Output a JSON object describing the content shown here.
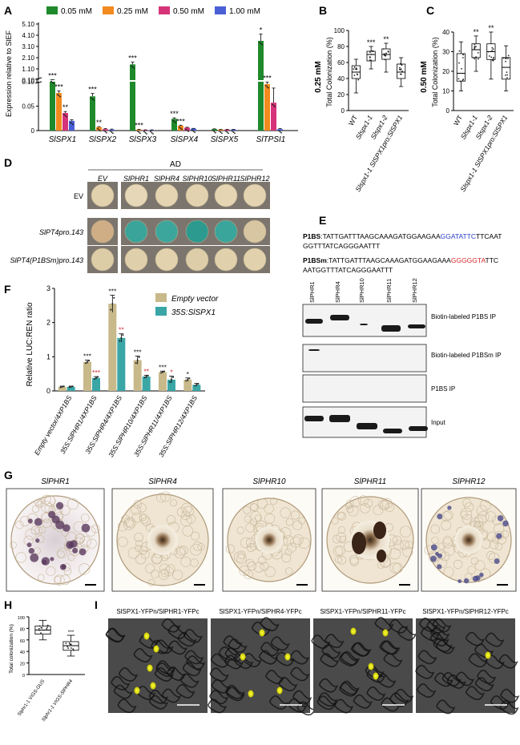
{
  "panels": {
    "A": {
      "letter": "A",
      "ylabel": "Expression relative to SlEF",
      "legend": [
        "0.05 mM",
        "0.25 mM",
        "0.50 mM",
        "1.00 mM"
      ],
      "series_colors": [
        "#1f8a2c",
        "#f28a1e",
        "#d6337a",
        "#4a5fd6"
      ],
      "upper_ticks": [
        "0.10",
        "1.10",
        "2.10",
        "3.10",
        "4.10",
        "5.10"
      ],
      "lower_ticks": [
        "0",
        "0.05",
        "0.10"
      ],
      "genes": [
        "SlSPX1",
        "SlSPX2",
        "SlSPX3",
        "SlSPX4",
        "SlSPX5",
        "SlTPSI1"
      ],
      "sig": [
        [
          "***",
          "***",
          "**",
          ""
        ],
        [
          "***",
          "**",
          "",
          ""
        ],
        [
          "***",
          "***",
          "",
          ""
        ],
        [
          "***",
          "***",
          "",
          ""
        ],
        [
          "",
          "",
          "",
          ""
        ],
        [
          "*",
          "***",
          "",
          ""
        ]
      ]
    },
    "B": {
      "letter": "B",
      "side_label": "0.25 mM",
      "ylabel": "Total Colonization (%)",
      "yticks": [
        "0",
        "20",
        "40",
        "60",
        "80",
        "100"
      ],
      "groups": [
        "WT",
        "Slspx1-1",
        "Slspx1-2",
        "Slspx1-1 SlSPX1pro:SlSPX1"
      ],
      "sig": [
        "",
        "***",
        "**",
        ""
      ]
    },
    "C": {
      "letter": "C",
      "side_label": "0.50 mM",
      "ylabel": "Total Colonization (%)",
      "yticks": [
        "0",
        "10",
        "20",
        "30",
        "40"
      ],
      "groups": [
        "WT",
        "Slspx1-1",
        "Slspx1-2",
        "Slspx1-1 SlSPX1pro:SlSPX1"
      ],
      "sig": [
        "",
        "**",
        "**",
        ""
      ]
    },
    "D": {
      "letter": "D",
      "top_label": "AD",
      "cols": [
        "EV",
        "SlPHR1",
        "SlPHR4",
        "SlPHR10",
        "SlPHR11",
        "SlPHR12"
      ],
      "rows": [
        "EV",
        "SlPT4pro.143",
        "SlPT4(P1BSm)pro.143"
      ],
      "colony_colors": [
        [
          "#e1d1ad",
          "#e6d7b8",
          "#e4d4b2",
          "#e2d2af",
          "#e5d5b3",
          "#e3d3b1"
        ],
        [
          "#cfae86",
          "#3aa49a",
          "#3da69c",
          "#2c9a8f",
          "#3aa59b",
          "#d8c6a3"
        ],
        [
          "#dccda7",
          "#dfcfaa",
          "#e2d2ae",
          "#ddcea9",
          "#e0d0ac",
          "#e1d1ad"
        ]
      ]
    },
    "E": {
      "letter": "E",
      "p1bs_label": "P1BS",
      "p1bs_seq_a": ":TATTGATTTAAGCAAAGATGGAAGAA",
      "p1bs_seq_motif": "GGATATTC",
      "p1bs_seq_b": "TTCAAT",
      "p1bs_seq_line2": "GGTTTATCAGGGAATTT",
      "p1bsm_label": "P1BSm",
      "p1bsm_seq_a": ":TATTGATTTAAGCAAAGATGGAAGAAA",
      "p1bsm_seq_motif": "GGGGGTA",
      "p1bsm_seq_b": "TTC",
      "p1bsm_seq_line2": "AATGGTTTATCAGGGAATTT",
      "lanes": [
        "SlPHR1",
        "SlPHR4",
        "SlPHR10",
        "SlPHR11",
        "SlPHR12"
      ],
      "blots": [
        "Biotin-labeled P1BS IP",
        "Biotin-labeled P1BSm IP",
        "P1BS IP",
        "Input"
      ],
      "motif_color_a": "#2a3fc9",
      "motif_color_b": "#d62a2a"
    },
    "F": {
      "letter": "F",
      "ylabel": "Relative LUC:REN ratio",
      "yticks": [
        "0",
        "1",
        "2",
        "3"
      ],
      "legend": [
        "Empty vector",
        "35S:SlSPX1"
      ],
      "colors": [
        "#c8b98a",
        "#3aa6a6"
      ],
      "constructs": [
        "Empty vector/4XP1BS",
        "35S:SlPHR1/4XP1BS",
        "35S:SlPHR4/4XP1BS",
        "35S:SlPHR10/4XP1BS",
        "35S:SlPHR11/4XP1BS",
        "35S:SlPHR12/4XP1BS"
      ],
      "sig_black": [
        "",
        "***",
        "***",
        "***",
        "***",
        "*"
      ],
      "sig_red": [
        "",
        "***",
        "**",
        "**",
        "*",
        ""
      ]
    },
    "G": {
      "letter": "G",
      "titles": [
        "SlPHR1",
        "SlPHR4",
        "SlPHR10",
        "SlPHR11",
        "SlPHR12"
      ]
    },
    "H": {
      "letter": "H",
      "ylabel": "Total colonization (%)",
      "yticks": [
        "0",
        "20",
        "40",
        "60",
        "80",
        "100"
      ],
      "groups": [
        "Slphr1-1 VIGS-GUS",
        "Slphr1-1 VIGS-SlPHR4"
      ],
      "sig": [
        "",
        "***"
      ]
    },
    "I": {
      "letter": "I",
      "titles": [
        "SlSPX1-YFPn/SlPHR1-YFPc",
        "SlSPX1-YFPn/SlPHR4-YFPc",
        "SlSPX1-YFPn/SlPHR11-YFPc",
        "SlSPX1-YFPn/SlPHR12-YFPc"
      ]
    }
  },
  "chart_data": [
    {
      "panel": "A",
      "type": "bar",
      "categories": [
        "SlSPX1",
        "SlSPX2",
        "SlSPX3",
        "SlSPX4",
        "SlSPX5",
        "SlTPSI1"
      ],
      "series": [
        {
          "name": "0.05 mM",
          "values": [
            0.13,
            0.07,
            1.5,
            0.024,
            0.003,
            3.6
          ]
        },
        {
          "name": "0.25 mM",
          "values": [
            0.077,
            0.007,
            0.002,
            0.01,
            0.002,
            0.095
          ]
        },
        {
          "name": "0.50 mM",
          "values": [
            0.036,
            0.003,
            0.001,
            0.006,
            0.002,
            0.057
          ]
        },
        {
          "name": "1.00 mM",
          "values": [
            0.02,
            0.002,
            0.001,
            0.004,
            0.002,
            0.003
          ]
        }
      ],
      "broken_axis": true,
      "lower_ylim": [
        0,
        0.1
      ],
      "upper_ylim": [
        0.1,
        5.1
      ]
    },
    {
      "panel": "B",
      "type": "box",
      "categories": [
        "WT",
        "Slspx1-1",
        "Slspx1-2",
        "Slspx1-1 SlSPX1pro:SlSPX1"
      ],
      "boxes": [
        [
          22,
          40,
          48,
          56,
          64
        ],
        [
          52,
          62,
          70,
          74,
          80
        ],
        [
          48,
          64,
          70,
          77,
          84
        ],
        [
          30,
          40,
          48,
          58,
          66
        ]
      ],
      "ylim": [
        0,
        100
      ]
    },
    {
      "panel": "C",
      "type": "box",
      "categories": [
        "WT",
        "Slspx1-1",
        "Slspx1-2",
        "Slspx1-1 SlSPX1pro:SlSPX1"
      ],
      "boxes": [
        [
          10,
          15,
          19,
          29,
          35
        ],
        [
          20,
          27,
          31,
          34,
          38
        ],
        [
          16,
          26,
          30,
          34,
          40
        ],
        [
          10,
          16,
          22,
          27,
          33
        ]
      ],
      "ylim": [
        0,
        40
      ]
    },
    {
      "panel": "F",
      "type": "bar",
      "categories": [
        "Empty vector/4XP1BS",
        "35S:SlPHR1/4XP1BS",
        "35S:SlPHR4/4XP1BS",
        "35S:SlPHR10/4XP1BS",
        "35S:SlPHR11/4XP1BS",
        "35S:SlPHR12/4XP1BS"
      ],
      "series": [
        {
          "name": "Empty vector",
          "values": [
            0.12,
            0.85,
            2.55,
            0.9,
            0.55,
            0.33
          ]
        },
        {
          "name": "35S:SlSPX1",
          "values": [
            0.12,
            0.38,
            1.55,
            0.42,
            0.33,
            0.18
          ]
        }
      ],
      "errors": [
        [
          0.02,
          0.05,
          0.25,
          0.12,
          0.03,
          0.05
        ],
        [
          0.02,
          0.04,
          0.12,
          0.04,
          0.1,
          0.04
        ]
      ],
      "ylim": [
        0,
        3
      ]
    },
    {
      "panel": "H",
      "type": "box",
      "categories": [
        "Slphr1-1 VIGS-GUS",
        "Slphr1-1 VIGS-SlPHR4"
      ],
      "boxes": [
        [
          60,
          70,
          77,
          84,
          94
        ],
        [
          32,
          42,
          50,
          57,
          68
        ]
      ],
      "ylim": [
        0,
        100
      ]
    }
  ]
}
